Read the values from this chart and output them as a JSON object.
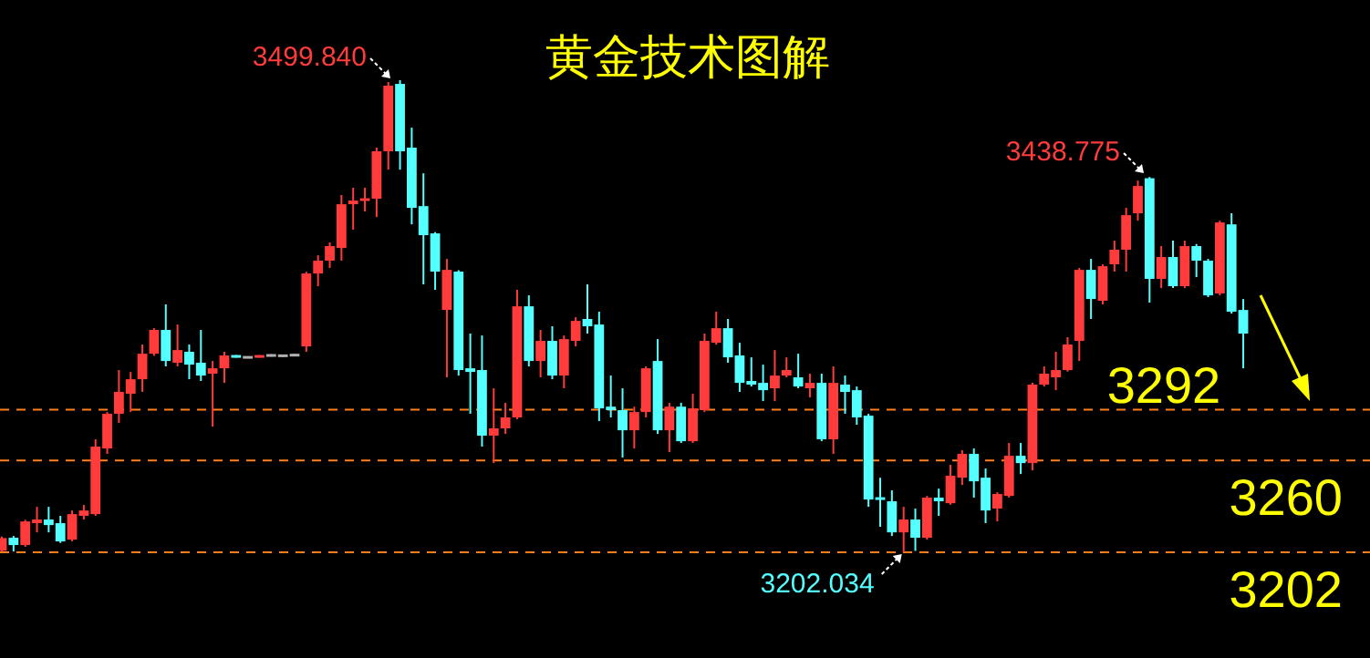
{
  "chart_data": {
    "type": "candlestick",
    "title": "黄金技术图解",
    "categories": [
      null,
      null,
      null,
      null,
      null,
      null,
      null,
      null,
      null,
      null,
      null,
      null,
      null,
      null,
      null,
      null,
      null,
      null,
      null,
      null,
      null,
      null,
      null,
      null,
      null,
      null,
      null,
      null,
      null,
      null,
      null,
      null,
      null,
      null,
      null,
      null,
      null,
      null,
      null,
      null,
      null,
      null,
      null,
      null,
      null,
      null,
      null,
      null,
      null,
      null,
      null,
      null,
      null,
      null,
      null,
      null,
      null,
      null,
      null,
      null,
      null,
      null,
      null,
      null,
      null,
      null,
      null,
      null,
      null,
      null,
      null,
      null,
      null,
      null,
      null,
      null,
      null,
      null,
      null,
      null,
      null,
      null,
      null,
      null,
      null,
      null,
      null,
      null,
      null,
      null,
      null,
      null,
      null,
      null,
      null,
      null,
      null,
      null,
      null,
      null,
      null,
      null,
      null,
      null,
      null,
      null,
      null
    ],
    "ohlc": [
      [
        3203,
        3212,
        3202.5,
        3211
      ],
      [
        3211.2,
        3212.3,
        3202.5,
        3206.6
      ],
      [
        3206.6,
        3222.5,
        3205.5,
        3221.5
      ],
      [
        3220.4,
        3230.7,
        3214.6,
        3222.7
      ],
      [
        3222.7,
        3230.7,
        3214.6,
        3219.2
      ],
      [
        3220.4,
        3225,
        3208,
        3208.9
      ],
      [
        3210,
        3228.4,
        3209,
        3226.1
      ],
      [
        3225,
        3231.9,
        3222.7,
        3228.4
      ],
      [
        3226.1,
        3273.3,
        3225,
        3268.7
      ],
      [
        3267.5,
        3290.5,
        3264.1,
        3289.4
      ],
      [
        3289.4,
        3317,
        3283.6,
        3303.2
      ],
      [
        3302,
        3315.8,
        3290.5,
        3311.2
      ],
      [
        3311.2,
        3333.1,
        3303.2,
        3327.3
      ],
      [
        3327.3,
        3343.4,
        3326,
        3342.3
      ],
      [
        3342.3,
        3358.4,
        3319.3,
        3322.7
      ],
      [
        3321.6,
        3345.7,
        3319.3,
        3329.6
      ],
      [
        3328.5,
        3333.1,
        3311.2,
        3320.4
      ],
      [
        3321.6,
        3342.3,
        3310.1,
        3313.5
      ],
      [
        3314.7,
        3322.7,
        3281.3,
        3318.1
      ],
      [
        3318.1,
        3328.5,
        3308.9,
        3326.2
      ],
      [
        3326.2,
        3326.5,
        3324.8,
        3325
      ],
      [
        3325,
        3325.5,
        3324.5,
        3325
      ],
      [
        3325,
        3326.5,
        3324.8,
        3326.2
      ],
      [
        3326.2,
        3327,
        3325.5,
        3326.2
      ],
      [
        3326,
        3326.8,
        3325.3,
        3326
      ],
      [
        3326.4,
        3327.2,
        3325.7,
        3326.4
      ],
      [
        3331.9,
        3379,
        3328.5,
        3377.9
      ],
      [
        3377.9,
        3389.4,
        3369.9,
        3386
      ],
      [
        3386,
        3397.5,
        3381.4,
        3395.2
      ],
      [
        3394,
        3427.4,
        3386,
        3421.6
      ],
      [
        3421.6,
        3432,
        3405.5,
        3423.9
      ],
      [
        3423.9,
        3432,
        3417,
        3425.1
      ],
      [
        3425.1,
        3457.3,
        3413.5,
        3455
      ],
      [
        3455,
        3498.7,
        3443.4,
        3496.4
      ],
      [
        3497.5,
        3499.84,
        3443.4,
        3455
      ],
      [
        3457.3,
        3469.9,
        3408.9,
        3419.3
      ],
      [
        3420.4,
        3441.1,
        3371,
        3402.1
      ],
      [
        3403.2,
        3404,
        3367.6,
        3379.1
      ],
      [
        3354.9,
        3387.1,
        3312.4,
        3380.2
      ],
      [
        3379.1,
        3380,
        3313.5,
        3317
      ],
      [
        3318.1,
        3340,
        3289.4,
        3315.8
      ],
      [
        3317,
        3338.8,
        3268.7,
        3275.6
      ],
      [
        3275.6,
        3305.5,
        3258.3,
        3280.2
      ],
      [
        3280.2,
        3296.3,
        3276.7,
        3287.1
      ],
      [
        3287.1,
        3367.6,
        3286,
        3357.2
      ],
      [
        3357.2,
        3364.1,
        3319.3,
        3322.7
      ],
      [
        3322.7,
        3342.3,
        3312.4,
        3335.4
      ],
      [
        3335.4,
        3344.6,
        3311.2,
        3313.5
      ],
      [
        3313.5,
        3338.8,
        3305.5,
        3336.5
      ],
      [
        3335.4,
        3350.3,
        3331.9,
        3348
      ],
      [
        3349.2,
        3371,
        3340,
        3344.6
      ],
      [
        3345.7,
        3353.8,
        3284.8,
        3292.8
      ],
      [
        3293.9,
        3313.5,
        3287.1,
        3291.7
      ],
      [
        3291.7,
        3305.5,
        3261.8,
        3279
      ],
      [
        3279,
        3293.9,
        3267.5,
        3290.5
      ],
      [
        3290.5,
        3319.3,
        3287.1,
        3318.1
      ],
      [
        3322.7,
        3336.5,
        3276.7,
        3279
      ],
      [
        3279,
        3296.3,
        3265.2,
        3293.9
      ],
      [
        3293.9,
        3296.3,
        3271,
        3272.1
      ],
      [
        3272.1,
        3302,
        3271,
        3292.8
      ],
      [
        3291.7,
        3340,
        3290.5,
        3335.4
      ],
      [
        3334.2,
        3353.8,
        3333,
        3343.4
      ],
      [
        3343.4,
        3349.2,
        3321.6,
        3325
      ],
      [
        3326.2,
        3334.2,
        3303.2,
        3308.9
      ],
      [
        3310.1,
        3325,
        3306.6,
        3307.8
      ],
      [
        3308.9,
        3320.4,
        3297.4,
        3304.3
      ],
      [
        3305.5,
        3329.6,
        3297.4,
        3313.5
      ],
      [
        3313.5,
        3325,
        3312.4,
        3317
      ],
      [
        3312.4,
        3327.3,
        3305.5,
        3306.6
      ],
      [
        3305.5,
        3314.7,
        3299.7,
        3308.9
      ],
      [
        3308.9,
        3314.7,
        3272.1,
        3273.3
      ],
      [
        3273.3,
        3319.3,
        3264.1,
        3308.9
      ],
      [
        3307.8,
        3313.5,
        3289.4,
        3303.2
      ],
      [
        3304.3,
        3306.6,
        3282.5,
        3287.1
      ],
      [
        3288.2,
        3289.4,
        3230.7,
        3235.3
      ],
      [
        3236.5,
        3249.1,
        3218.1,
        3235.3
      ],
      [
        3234.2,
        3241.1,
        3212.3,
        3214.6
      ],
      [
        3214.6,
        3230.7,
        3202.034,
        3222.7
      ],
      [
        3222.7,
        3229.6,
        3202.9,
        3211.2
      ],
      [
        3211.2,
        3237.6,
        3210,
        3236.5
      ],
      [
        3236.5,
        3242.2,
        3225,
        3234.2
      ],
      [
        3233,
        3257.2,
        3232,
        3250.3
      ],
      [
        3249.1,
        3266.4,
        3244.5,
        3264.1
      ],
      [
        3264.1,
        3267.5,
        3236.5,
        3246.8
      ],
      [
        3249.1,
        3254.9,
        3220.4,
        3228.4
      ],
      [
        3229.6,
        3239.9,
        3221.5,
        3238.8
      ],
      [
        3237.6,
        3271,
        3236.5,
        3262.9
      ],
      [
        3262.9,
        3271,
        3251.4,
        3258.3
      ],
      [
        3258.3,
        3309,
        3253.7,
        3307.8
      ],
      [
        3307.8,
        3319.3,
        3306.6,
        3314.7
      ],
      [
        3312.4,
        3328.5,
        3304.3,
        3317
      ],
      [
        3317,
        3337.7,
        3316,
        3333.1
      ],
      [
        3335.4,
        3381.4,
        3322.7,
        3380.2
      ],
      [
        3380.2,
        3387.1,
        3349.2,
        3361.8
      ],
      [
        3360.7,
        3383.7,
        3358.4,
        3382.5
      ],
      [
        3383.7,
        3398.6,
        3379.1,
        3392.9
      ],
      [
        3392.9,
        3419.3,
        3379.1,
        3414.7
      ],
      [
        3415.9,
        3436.5,
        3411.2,
        3433.1
      ],
      [
        3438,
        3438.775,
        3359.5,
        3374.5
      ],
      [
        3374.5,
        3395.2,
        3368.7,
        3388.3
      ],
      [
        3388.3,
        3398.6,
        3368.7,
        3369.9
      ],
      [
        3369.9,
        3398.6,
        3368.7,
        3395.2
      ],
      [
        3395.2,
        3396.5,
        3375.6,
        3386
      ],
      [
        3386,
        3387.1,
        3363,
        3364.1
      ],
      [
        3365.3,
        3411.2,
        3364.1,
        3410.1
      ],
      [
        3408.9,
        3415.9,
        3352.6,
        3353.8
      ],
      [
        3354.9,
        3361.8,
        3318.1,
        3340
      ]
    ],
    "ref_lines": [
      {
        "axis": "y",
        "value": 3292,
        "label": "3292",
        "color": "#ff7f1e",
        "line_style": "dashed"
      },
      {
        "axis": "y",
        "value": 3260,
        "label": "3260",
        "color": "#ff7f1e",
        "line_style": "dashed"
      },
      {
        "axis": "y",
        "value": 3202,
        "label": "3202",
        "color": "#ff7f1e",
        "line_style": "dashed"
      }
    ],
    "annotations": [
      "3499.840",
      "3438.775",
      {
        "text": "3202.034",
        "y": 3202.034
      }
    ]
  }
}
